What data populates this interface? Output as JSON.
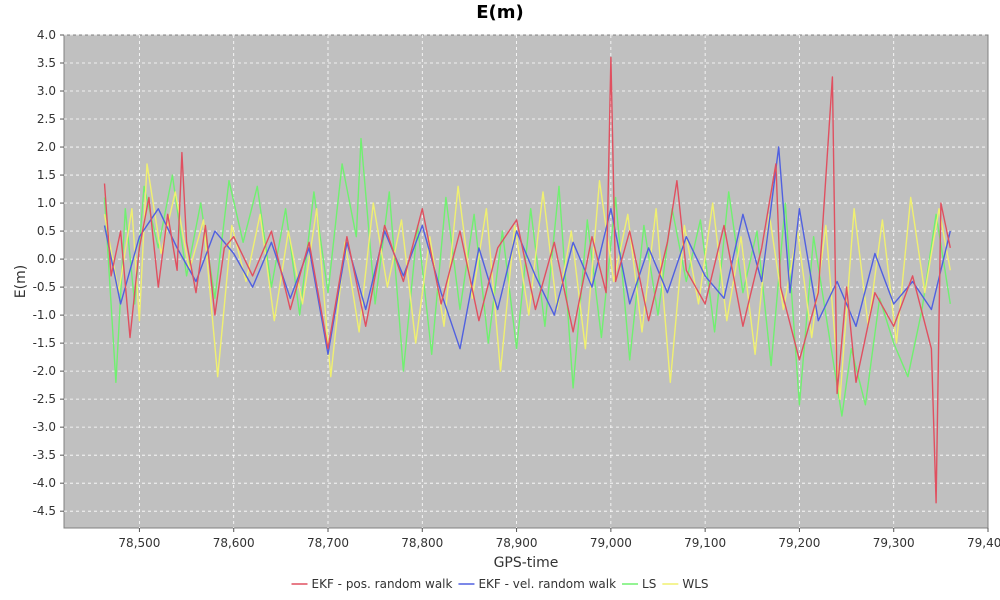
{
  "chart_data": {
    "type": "line",
    "title": "E(m)",
    "xlabel": "GPS-time",
    "ylabel": "E(m)",
    "xlim": [
      78420,
      79400
    ],
    "ylim": [
      -4.8,
      4.0
    ],
    "xticks": [
      78500,
      78600,
      78700,
      78800,
      78900,
      79000,
      79100,
      79200,
      79300,
      79400
    ],
    "xtick_labels": [
      "78,500",
      "78,600",
      "78,700",
      "78,800",
      "78,900",
      "79,000",
      "79,100",
      "79,200",
      "79,300",
      "79,400"
    ],
    "yticks": [
      4.0,
      3.5,
      3.0,
      2.5,
      2.0,
      1.5,
      1.0,
      0.5,
      0.0,
      -0.5,
      -1.0,
      -1.5,
      -2.0,
      -2.5,
      -3.0,
      -3.5,
      -4.0,
      -4.5
    ],
    "ytick_labels": [
      "4.0",
      "3.5",
      "3.0",
      "2.5",
      "2.0",
      "1.5",
      "1.0",
      "0.5",
      "0.0",
      "-0.5",
      "-1.0",
      "-1.5",
      "-2.0",
      "-2.5",
      "-3.0",
      "-3.5",
      "-4.0",
      "-4.5"
    ],
    "grid": true,
    "legend_position": "bottom",
    "plot_background": "#c0c0c0",
    "series": [
      {
        "name": "EKF - pos. random walk",
        "color": "#e05060",
        "x": [
          78463,
          78470,
          78480,
          78490,
          78500,
          78510,
          78520,
          78530,
          78540,
          78545,
          78550,
          78560,
          78570,
          78580,
          78590,
          78600,
          78620,
          78640,
          78660,
          78680,
          78700,
          78720,
          78740,
          78760,
          78780,
          78800,
          78820,
          78840,
          78860,
          78880,
          78900,
          78920,
          78940,
          78960,
          78980,
          78995,
          79000,
          79005,
          79020,
          79040,
          79060,
          79070,
          79080,
          79100,
          79120,
          79140,
          79160,
          79175,
          79180,
          79200,
          79220,
          79235,
          79240,
          79250,
          79260,
          79280,
          79300,
          79320,
          79340,
          79345,
          79350,
          79360
        ],
        "y": [
          1.35,
          -0.3,
          0.5,
          -1.4,
          0.2,
          1.1,
          -0.5,
          0.8,
          -0.2,
          1.9,
          0.3,
          -0.6,
          0.6,
          -1.0,
          0.2,
          0.4,
          -0.3,
          0.5,
          -0.9,
          0.3,
          -1.6,
          0.4,
          -1.2,
          0.6,
          -0.4,
          0.9,
          -0.8,
          0.5,
          -1.1,
          0.2,
          0.7,
          -0.9,
          0.3,
          -1.3,
          0.4,
          -0.6,
          3.6,
          -0.4,
          0.5,
          -1.1,
          0.3,
          1.4,
          -0.2,
          -0.8,
          0.6,
          -1.2,
          0.2,
          1.7,
          -0.5,
          -1.8,
          -0.6,
          3.25,
          -2.4,
          -0.5,
          -2.2,
          -0.6,
          -1.2,
          -0.3,
          -1.6,
          -4.35,
          1.0,
          0.2
        ]
      },
      {
        "name": "EKF - vel. random walk",
        "color": "#5060e0",
        "x": [
          78463,
          78480,
          78500,
          78520,
          78540,
          78560,
          78580,
          78600,
          78620,
          78640,
          78660,
          78680,
          78700,
          78720,
          78740,
          78760,
          78780,
          78800,
          78820,
          78840,
          78860,
          78880,
          78900,
          78920,
          78940,
          78960,
          78980,
          79000,
          79020,
          79040,
          79060,
          79080,
          79100,
          79120,
          79140,
          79160,
          79178,
          79190,
          79200,
          79220,
          79240,
          79260,
          79280,
          79300,
          79320,
          79340,
          79360
        ],
        "y": [
          0.6,
          -0.8,
          0.4,
          0.9,
          0.2,
          -0.4,
          0.5,
          0.1,
          -0.5,
          0.3,
          -0.7,
          0.2,
          -1.7,
          0.3,
          -0.9,
          0.5,
          -0.3,
          0.6,
          -0.6,
          -1.6,
          0.2,
          -0.9,
          0.5,
          -0.3,
          -1.0,
          0.3,
          -0.5,
          0.9,
          -0.8,
          0.2,
          -0.6,
          0.4,
          -0.3,
          -0.7,
          0.8,
          -0.4,
          2.0,
          -0.6,
          0.9,
          -1.1,
          -0.4,
          -1.2,
          0.1,
          -0.8,
          -0.4,
          -0.9,
          0.5
        ]
      },
      {
        "name": "LS",
        "color": "#70f070",
        "x": [
          78463,
          78475,
          78485,
          78495,
          78505,
          78520,
          78535,
          78550,
          78565,
          78580,
          78595,
          78610,
          78625,
          78640,
          78655,
          78670,
          78685,
          78700,
          78715,
          78730,
          78735,
          78750,
          78765,
          78780,
          78795,
          78810,
          78825,
          78840,
          78855,
          78870,
          78885,
          78900,
          78915,
          78930,
          78945,
          78960,
          78975,
          78990,
          79005,
          79020,
          79035,
          79050,
          79065,
          79080,
          79095,
          79110,
          79125,
          79140,
          79155,
          79170,
          79185,
          79200,
          79215,
          79230,
          79245,
          79255,
          79270,
          79285,
          79300,
          79315,
          79330,
          79345,
          79360
        ],
        "y": [
          1.1,
          -2.2,
          0.9,
          -0.8,
          1.3,
          0.2,
          1.5,
          -0.3,
          1.0,
          -0.7,
          1.4,
          0.3,
          1.3,
          -0.5,
          0.9,
          -1.0,
          1.2,
          -0.6,
          1.7,
          0.4,
          2.15,
          -0.8,
          1.2,
          -2.0,
          0.6,
          -1.7,
          1.1,
          -0.9,
          0.8,
          -1.5,
          0.5,
          -1.6,
          0.9,
          -1.2,
          1.3,
          -2.3,
          0.7,
          -1.4,
          1.1,
          -1.8,
          0.6,
          -1.0,
          0.9,
          -0.4,
          0.7,
          -1.3,
          1.2,
          -0.6,
          0.5,
          -1.9,
          1.0,
          -2.6,
          0.4,
          -1.2,
          -2.8,
          -1.6,
          -2.6,
          -0.7,
          -1.5,
          -2.1,
          -0.9,
          0.8,
          -0.8
        ]
      },
      {
        "name": "WLS",
        "color": "#f0f070",
        "x": [
          78463,
          78478,
          78492,
          78500,
          78508,
          78523,
          78538,
          78553,
          78568,
          78583,
          78598,
          78613,
          78628,
          78643,
          78658,
          78673,
          78688,
          78703,
          78718,
          78733,
          78748,
          78763,
          78778,
          78793,
          78808,
          78823,
          78838,
          78853,
          78868,
          78883,
          78898,
          78913,
          78928,
          78943,
          78958,
          78973,
          78988,
          79003,
          79018,
          79033,
          79048,
          79063,
          79078,
          79093,
          79108,
          79123,
          79138,
          79153,
          79168,
          79183,
          79198,
          79213,
          79228,
          79243,
          79258,
          79273,
          79288,
          79303,
          79318,
          79333,
          79348,
          79360
        ],
        "y": [
          0.8,
          -0.6,
          0.9,
          -1.1,
          1.7,
          0.1,
          1.2,
          -0.2,
          0.7,
          -2.1,
          0.6,
          -0.4,
          0.8,
          -1.1,
          0.5,
          -0.8,
          0.9,
          -2.1,
          0.3,
          -1.3,
          1.0,
          -0.5,
          0.7,
          -1.5,
          0.4,
          -1.2,
          1.3,
          -0.7,
          0.9,
          -2.0,
          0.6,
          -1.0,
          1.2,
          -0.9,
          0.5,
          -1.6,
          1.4,
          -0.4,
          0.8,
          -1.3,
          0.9,
          -2.2,
          0.6,
          -0.8,
          1.0,
          -1.1,
          0.4,
          -1.7,
          0.8,
          -0.9,
          0.5,
          -1.4,
          0.6,
          -2.5,
          0.9,
          -1.2,
          0.7,
          -1.5,
          1.1,
          -0.6,
          0.9,
          -0.2
        ]
      }
    ]
  }
}
